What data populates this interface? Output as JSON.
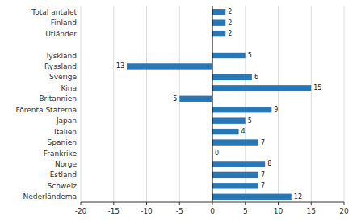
{
  "chart_data": {
    "type": "bar",
    "orientation": "horizontal",
    "categories": [
      "Nederländema",
      "Schweiz",
      "Estland",
      "Norge",
      "Frankrike",
      "Spanien",
      "Italien",
      "Japan",
      "Förenta Staterna",
      "Britannien",
      "Kina",
      "Sverige",
      "Ryssland",
      "Tyskland",
      null,
      "Utländer",
      "Finland",
      "Total antalet"
    ],
    "values": [
      12,
      7,
      7,
      8,
      0,
      7,
      4,
      5,
      9,
      -5,
      15,
      6,
      -13,
      5,
      null,
      2,
      2,
      2
    ],
    "color": "#2878b8",
    "xlim": [
      -20,
      20
    ],
    "xticks": [
      -20,
      -15,
      -10,
      -5,
      0,
      5,
      10,
      15,
      20
    ],
    "grid": true,
    "data_labels": true
  }
}
